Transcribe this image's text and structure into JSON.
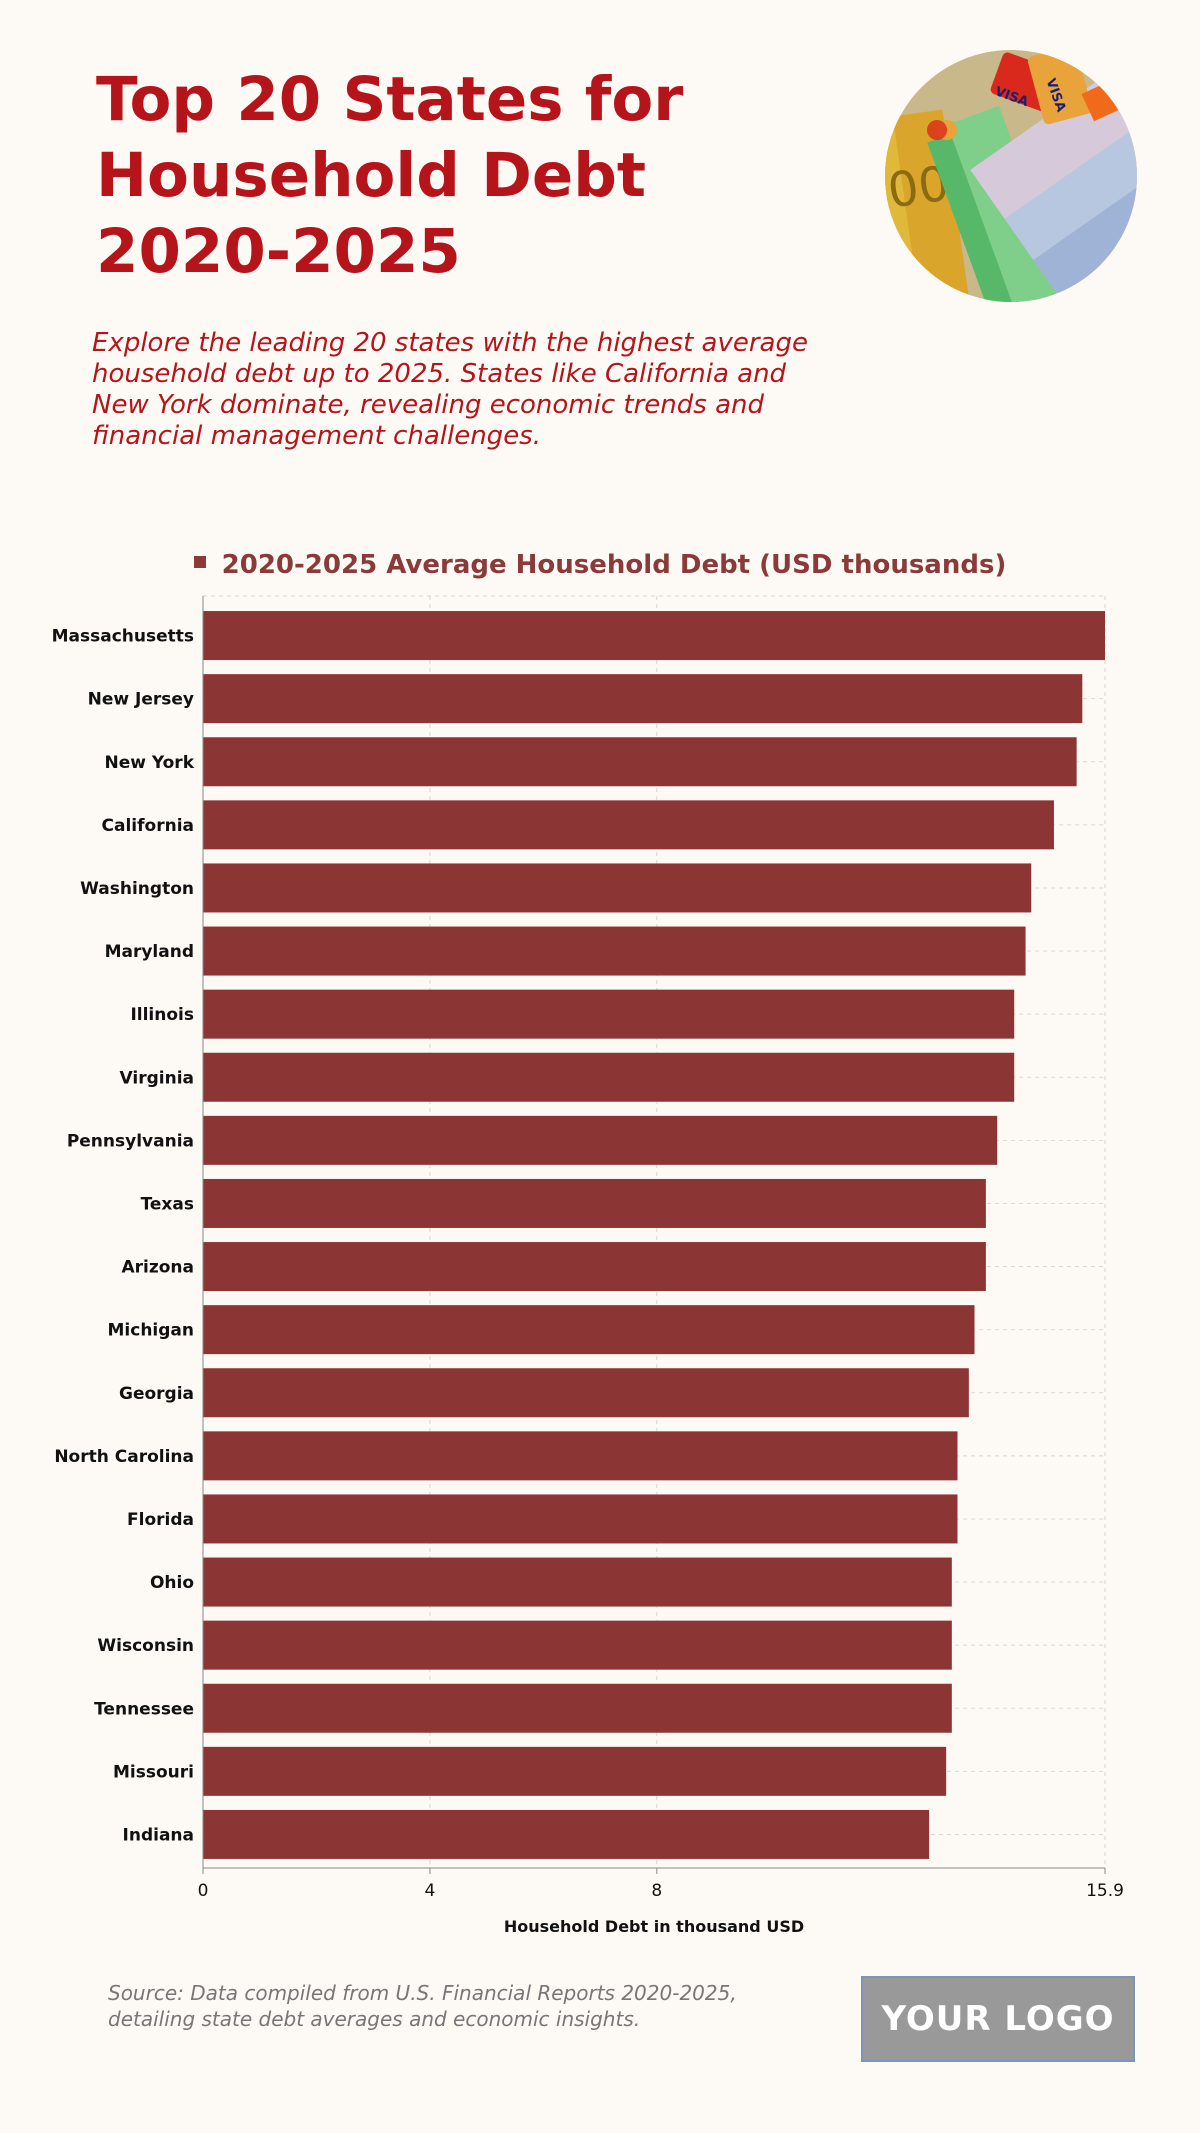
{
  "header": {
    "title": "Top 20 States for Household Debt 2020-2025",
    "subtitle": "Explore the leading 20 states with the highest average household debt up to 2025. States like California and New York dominate, revealing economic trends and financial management challenges."
  },
  "legend": {
    "label": "2020-2025 Average Household Debt (USD thousands)"
  },
  "colors": {
    "bar": "#8b3535",
    "title": "#b5141a",
    "background": "#fdfaf5"
  },
  "chart_data": {
    "type": "bar",
    "orientation": "horizontal",
    "categories": [
      "Massachusetts",
      "New Jersey",
      "New York",
      "California",
      "Washington",
      "Maryland",
      "Illinois",
      "Virginia",
      "Pennsylvania",
      "Texas",
      "Arizona",
      "Michigan",
      "Georgia",
      "North Carolina",
      "Florida",
      "Ohio",
      "Wisconsin",
      "Tennessee",
      "Missouri",
      "Indiana"
    ],
    "series": [
      {
        "name": "2020-2025 Average Household Debt (USD thousands)",
        "values": [
          15.9,
          15.5,
          15.4,
          15.0,
          14.6,
          14.5,
          14.3,
          14.3,
          14.0,
          13.8,
          13.8,
          13.6,
          13.5,
          13.3,
          13.3,
          13.2,
          13.2,
          13.2,
          13.1,
          12.8
        ]
      }
    ],
    "xlabel": "Household Debt in thousand USD",
    "xlim": [
      0,
      15.9
    ],
    "xticks": [
      "0",
      "4",
      "8",
      "15.9"
    ],
    "grid": true,
    "legend_position": "top"
  },
  "photo": {
    "description_icon": "money-and-cards-photo",
    "card_text": "VISA"
  },
  "footer": {
    "source": "Source: Data compiled from U.S. Financial Reports 2020-2025, detailing state debt averages and economic insights.",
    "logo": "YOUR LOGO"
  }
}
